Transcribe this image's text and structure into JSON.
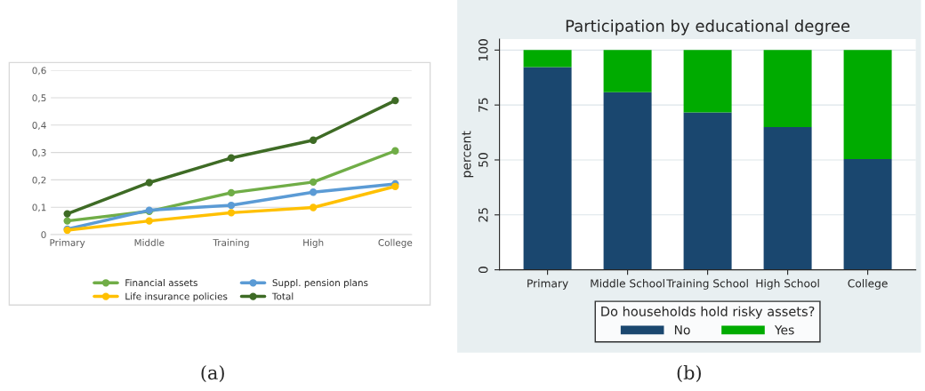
{
  "chart_data": [
    {
      "type": "line",
      "categories": [
        "Primary",
        "Middle",
        "Training",
        "High",
        "College"
      ],
      "series": [
        {
          "name": "Financial assets",
          "color": "#70ad47",
          "values": [
            0.05,
            0.085,
            0.153,
            0.192,
            0.306
          ]
        },
        {
          "name": "Suppl. pension plans",
          "color": "#5b9bd5",
          "values": [
            0.02,
            0.089,
            0.107,
            0.155,
            0.185
          ]
        },
        {
          "name": "Life insurance policies",
          "color": "#ffc000",
          "values": [
            0.016,
            0.05,
            0.08,
            0.099,
            0.176
          ]
        },
        {
          "name": "Total",
          "color": "#3e6b25",
          "values": [
            0.076,
            0.19,
            0.28,
            0.345,
            0.49
          ]
        }
      ],
      "ylim": [
        0,
        0.6
      ],
      "yticks": [
        {
          "value": 0,
          "label": "0"
        },
        {
          "value": 0.1,
          "label": "0,1"
        },
        {
          "value": 0.2,
          "label": "0,2"
        },
        {
          "value": 0.3,
          "label": "0,3"
        },
        {
          "value": 0.4,
          "label": "0,4"
        },
        {
          "value": 0.5,
          "label": "0,5"
        },
        {
          "value": 0.6,
          "label": "0,6"
        }
      ],
      "grid": "y",
      "legend": "bottom",
      "marker": "circle",
      "line_style": "solid",
      "annotations": [
        "(a)"
      ]
    },
    {
      "type": "bar",
      "stacked": true,
      "title": "Participation by educational degree",
      "ylabel": "percent",
      "legend_title": "Do households hold risky assets?",
      "categories": [
        "Primary",
        "Middle School",
        "Training School",
        "High School",
        "College"
      ],
      "series": [
        {
          "name": "No",
          "color": "#1a476f",
          "values": [
            92.3,
            80.8,
            71.6,
            65.0,
            50.4
          ]
        },
        {
          "name": "Yes",
          "color": "#00ab00",
          "values": [
            7.7,
            19.2,
            28.4,
            35.0,
            49.6
          ]
        }
      ],
      "ylim": [
        0,
        105
      ],
      "yticks": [
        0,
        25,
        50,
        75,
        100
      ],
      "grid": "y",
      "legend": "bottom",
      "annotations": [
        "(b)"
      ]
    }
  ]
}
